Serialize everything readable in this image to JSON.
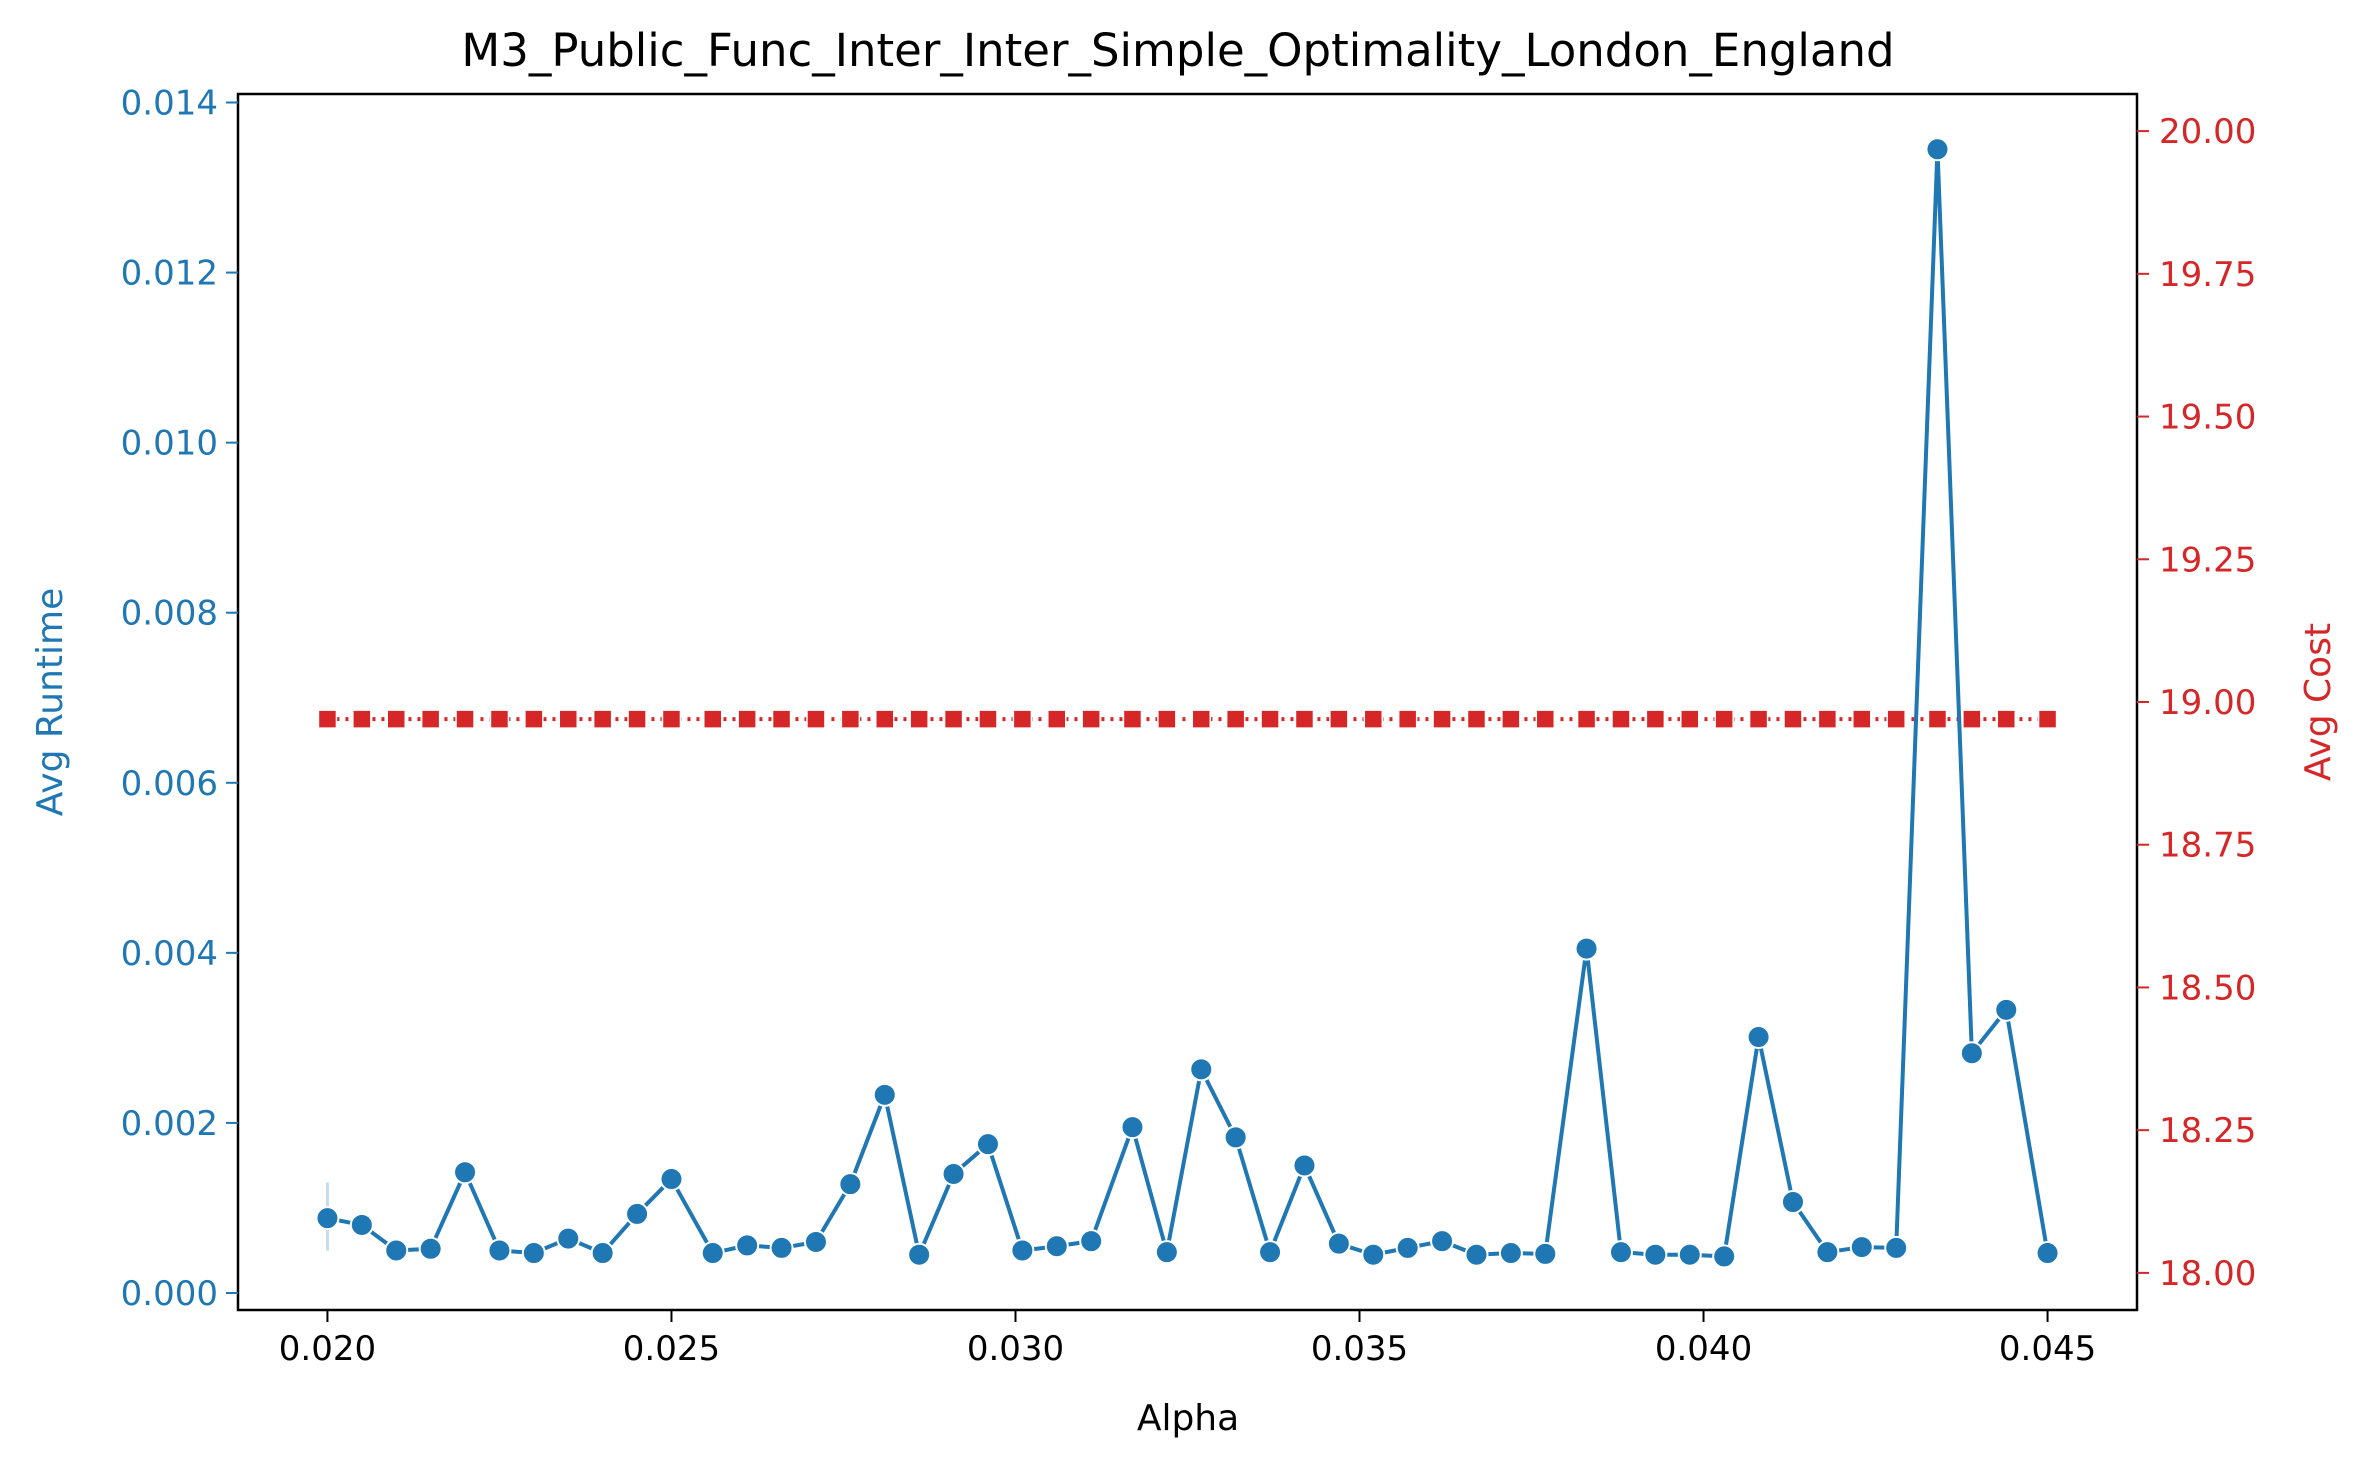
{
  "chart_data": {
    "type": "line",
    "title": "M3_Public_Func_Inter_Inter_Simple_Optimality_London_England",
    "xlabel": "Alpha",
    "ylabel_left": "Avg Runtime",
    "ylabel_right": "Avg Cost",
    "xlim": [
      0.0187,
      0.0463
    ],
    "ylim_left": [
      -0.0002,
      0.0141
    ],
    "ylim_right": [
      17.935,
      20.065
    ],
    "x_ticks": [
      "0.020",
      "0.025",
      "0.030",
      "0.035",
      "0.040",
      "0.045"
    ],
    "x_tick_values": [
      0.02,
      0.025,
      0.03,
      0.035,
      0.04,
      0.045
    ],
    "y_left_ticks": [
      "0.000",
      "0.002",
      "0.004",
      "0.006",
      "0.008",
      "0.010",
      "0.012",
      "0.014"
    ],
    "y_left_tick_values": [
      0,
      0.002,
      0.004,
      0.006,
      0.008,
      0.01,
      0.012,
      0.014
    ],
    "y_right_ticks": [
      "18.00",
      "18.25",
      "18.50",
      "18.75",
      "19.00",
      "19.25",
      "19.50",
      "19.75",
      "20.00"
    ],
    "y_right_tick_values": [
      18.0,
      18.25,
      18.5,
      18.75,
      19.0,
      19.25,
      19.5,
      19.75,
      20.0
    ],
    "grid": false,
    "colors": {
      "runtime": "#1f77b4",
      "cost": "#d62728",
      "error_band": "#c6dbef"
    },
    "error_bar": {
      "x": 0.02,
      "low": 0.0005,
      "high": 0.0013
    },
    "x": [
      0.02,
      0.0205,
      0.021,
      0.0215,
      0.022,
      0.0225,
      0.023,
      0.0235,
      0.024,
      0.0245,
      0.025,
      0.0256,
      0.0261,
      0.0266,
      0.0271,
      0.0276,
      0.0281,
      0.0286,
      0.0291,
      0.0296,
      0.0301,
      0.0306,
      0.0311,
      0.0317,
      0.0322,
      0.0327,
      0.0332,
      0.0337,
      0.0342,
      0.0347,
      0.0352,
      0.0357,
      0.0362,
      0.0367,
      0.0372,
      0.0377,
      0.0383,
      0.0388,
      0.0393,
      0.0398,
      0.0403,
      0.0408,
      0.0413,
      0.0418,
      0.0423,
      0.0428,
      0.0434,
      0.0439,
      0.0444,
      0.045
    ],
    "series": [
      {
        "axis": "left",
        "marker": "circle",
        "values": [
          0.00088,
          0.0008,
          0.0005,
          0.00052,
          0.00142,
          0.0005,
          0.00047,
          0.00064,
          0.00047,
          0.00093,
          0.00134,
          0.00047,
          0.00056,
          0.00053,
          0.0006,
          0.00128,
          0.00233,
          0.00045,
          0.0014,
          0.00175,
          0.0005,
          0.00055,
          0.00061,
          0.00195,
          0.00048,
          0.00263,
          0.00183,
          0.00048,
          0.0015,
          0.00058,
          0.00045,
          0.00053,
          0.00061,
          0.00045,
          0.00047,
          0.00046,
          0.00405,
          0.00048,
          0.00045,
          0.00045,
          0.00043,
          0.00301,
          0.00107,
          0.00048,
          0.00054,
          0.00053,
          0.01345,
          0.00282,
          0.00333,
          0.00047
        ]
      },
      {
        "axis": "right",
        "marker": "square",
        "values": [
          18.97,
          18.97,
          18.97,
          18.97,
          18.97,
          18.97,
          18.97,
          18.97,
          18.97,
          18.97,
          18.97,
          18.97,
          18.97,
          18.97,
          18.97,
          18.97,
          18.97,
          18.97,
          18.97,
          18.97,
          18.97,
          18.97,
          18.97,
          18.97,
          18.97,
          18.97,
          18.97,
          18.97,
          18.97,
          18.97,
          18.97,
          18.97,
          18.97,
          18.97,
          18.97,
          18.97,
          18.97,
          18.97,
          18.97,
          18.97,
          18.97,
          18.97,
          18.97,
          18.97,
          18.97,
          18.97,
          18.97,
          18.97,
          18.97,
          18.97
        ]
      }
    ]
  }
}
